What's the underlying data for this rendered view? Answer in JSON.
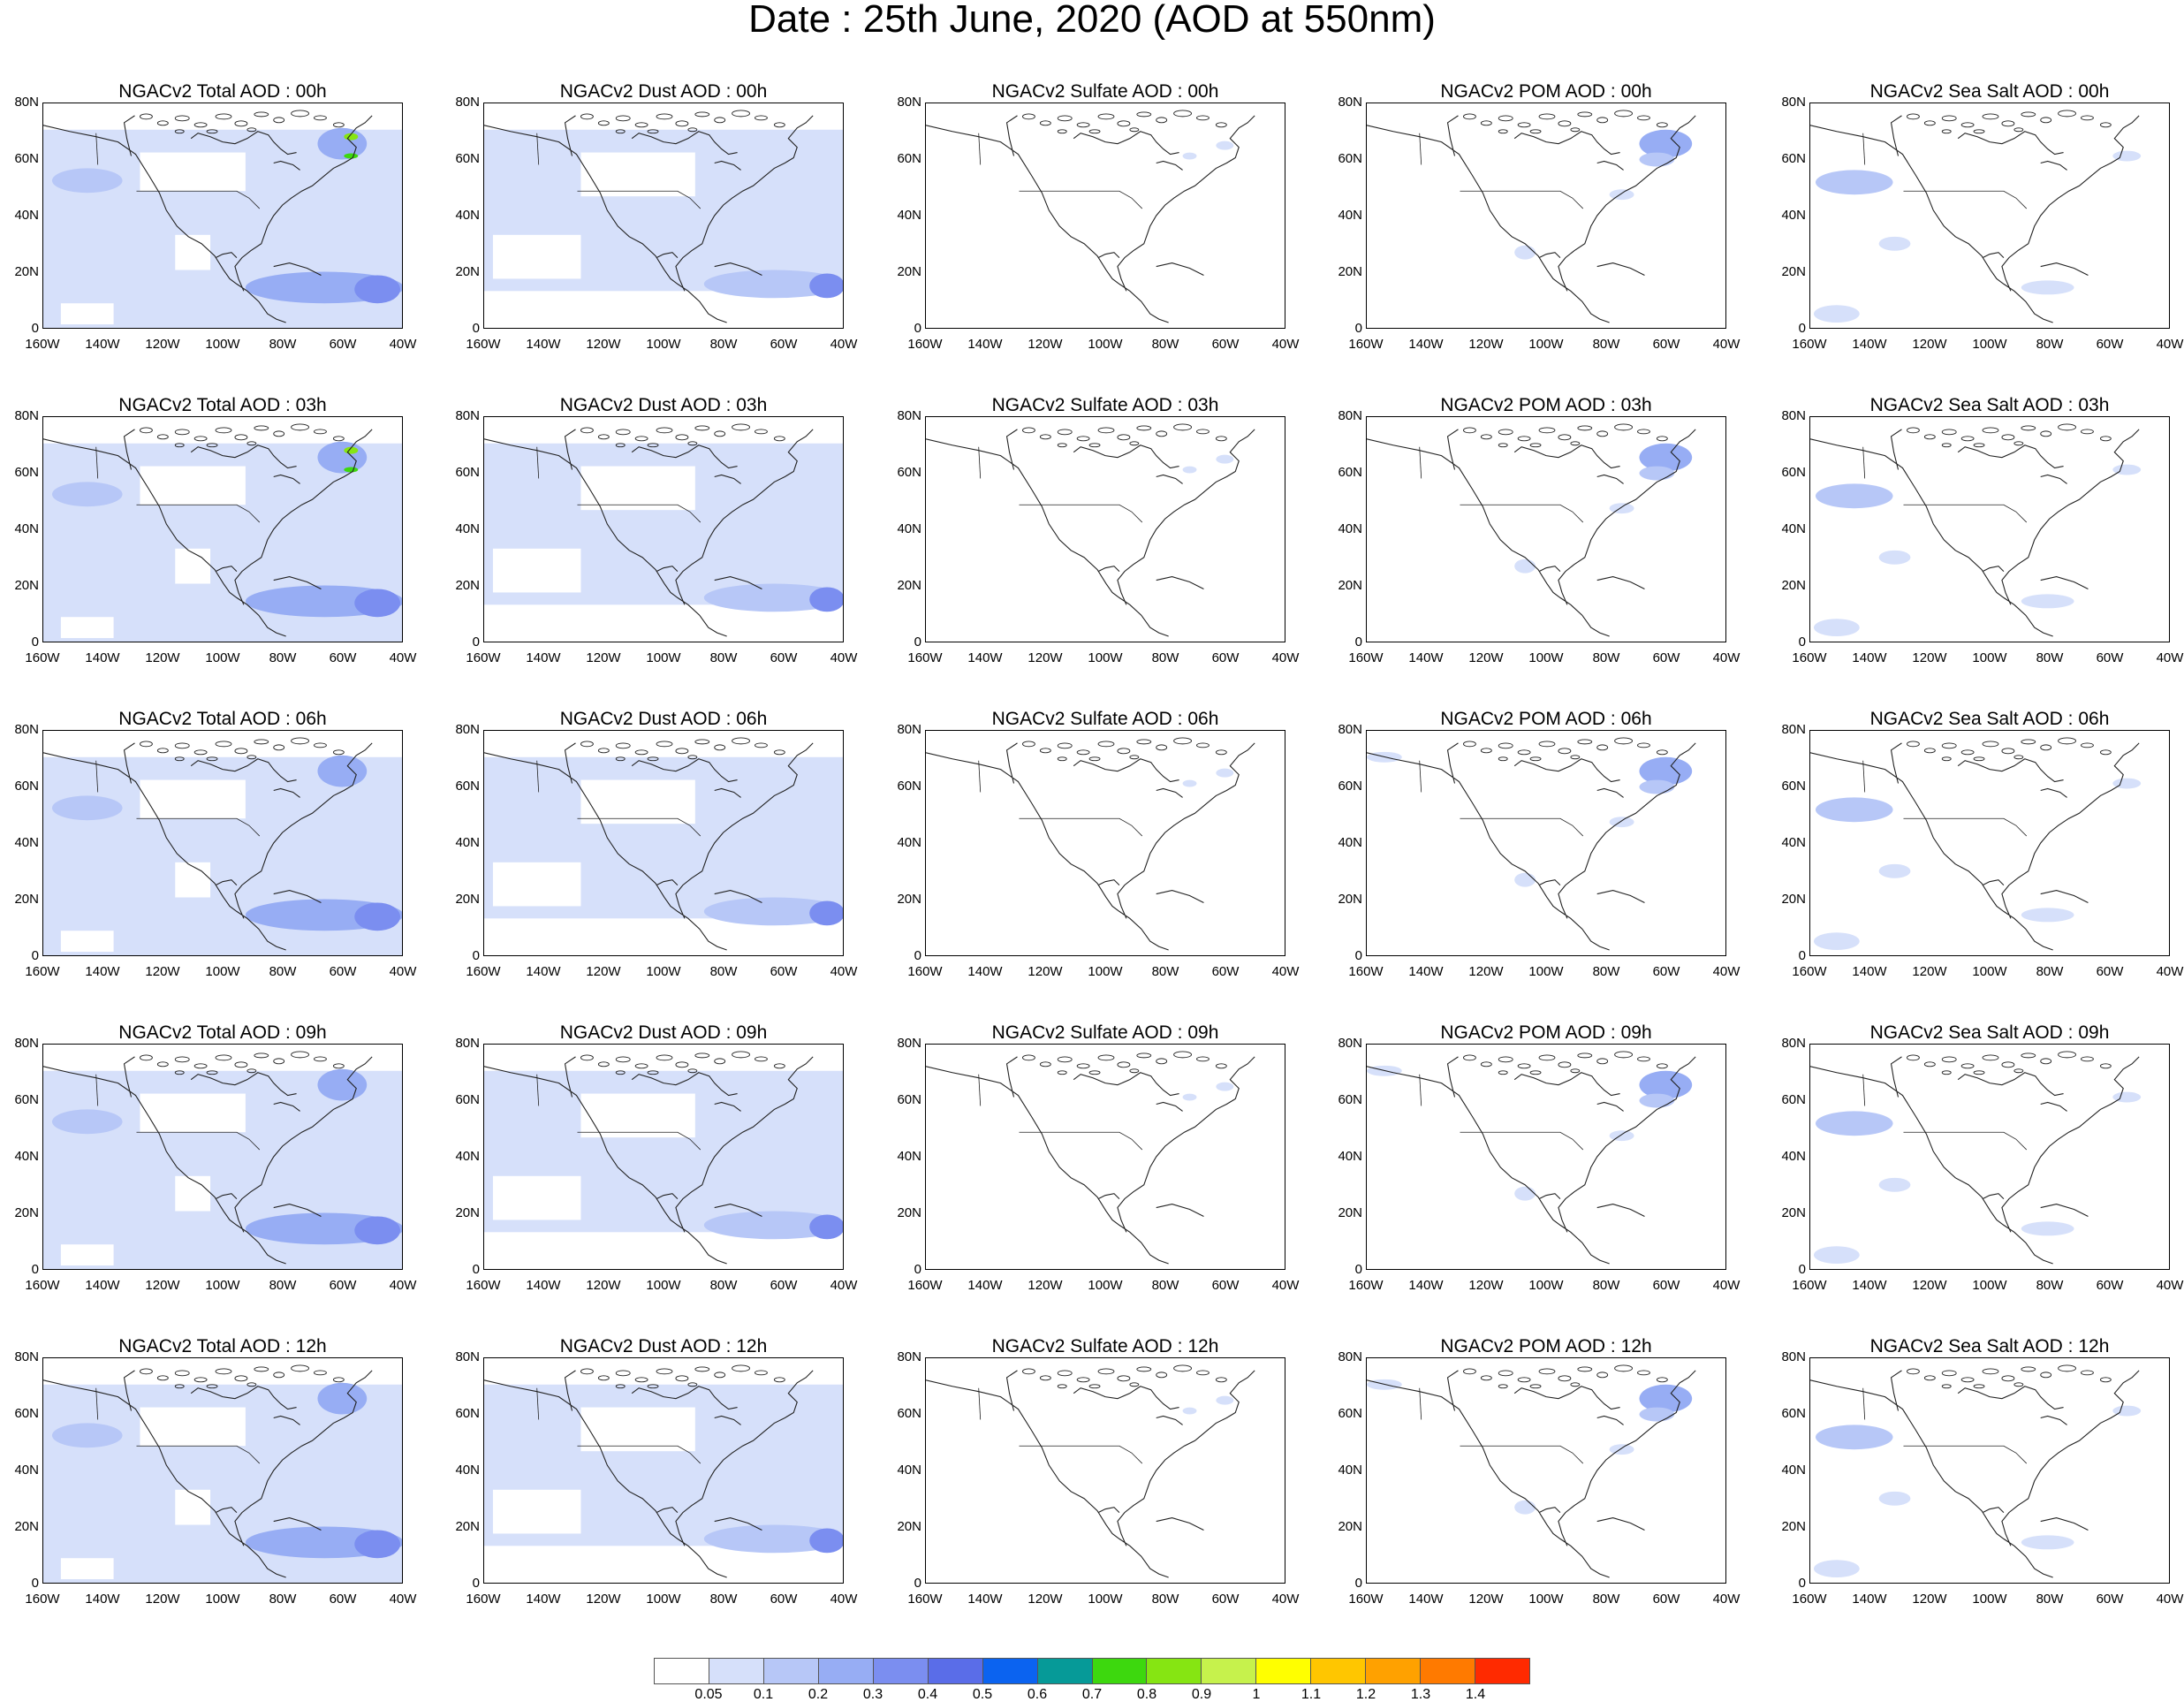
{
  "title": "Date : 25th June, 2020 (AOD at 550nm)",
  "y_ticks": [
    "80N",
    "60N",
    "40N",
    "20N",
    "0"
  ],
  "x_ticks": [
    "160W",
    "140W",
    "120W",
    "100W",
    "80W",
    "60W",
    "40W"
  ],
  "species_keys": [
    "total",
    "dust",
    "sulfate",
    "pom",
    "seasalt"
  ],
  "panels": [
    [
      "NGACv2 Total AOD : 00h",
      "NGACv2 Dust AOD : 00h",
      "NGACv2 Sulfate AOD : 00h",
      "NGACv2 POM AOD : 00h",
      "NGACv2 Sea Salt AOD : 00h"
    ],
    [
      "NGACv2 Total AOD : 03h",
      "NGACv2 Dust AOD : 03h",
      "NGACv2 Sulfate AOD : 03h",
      "NGACv2 POM AOD : 03h",
      "NGACv2 Sea Salt AOD : 03h"
    ],
    [
      "NGACv2 Total AOD : 06h",
      "NGACv2 Dust AOD : 06h",
      "NGACv2 Sulfate AOD : 06h",
      "NGACv2 POM AOD : 06h",
      "NGACv2 Sea Salt AOD : 06h"
    ],
    [
      "NGACv2 Total AOD : 09h",
      "NGACv2 Dust AOD : 09h",
      "NGACv2 Sulfate AOD : 09h",
      "NGACv2 POM AOD : 09h",
      "NGACv2 Sea Salt  AOD : 09h"
    ],
    [
      "NGACv2 Total AOD  : 12h",
      "NGACv2 Dust AOD : 12h",
      "NGACv2 Sulfate AOD : 12h",
      "NGACv2 POM  AOD : 12h",
      "NGACv2 Sea Salt  AOD : 12h"
    ]
  ],
  "colorbar": {
    "colors": [
      "#ffffff",
      "#d6e0fa",
      "#b7c7f7",
      "#97adf4",
      "#7b8ef0",
      "#5a6de8",
      "#0b63f0",
      "#069a98",
      "#3dd80e",
      "#86e512",
      "#c6f24c",
      "#ffff00",
      "#ffc600",
      "#ffa100",
      "#ff7a00",
      "#ff2a00"
    ],
    "labels": [
      "0.05",
      "0.1",
      "0.2",
      "0.3",
      "0.4",
      "0.5",
      "0.6",
      "0.7",
      "0.8",
      "0.9",
      "1",
      "1.1",
      "1.2",
      "1.3",
      "1.4"
    ]
  }
}
